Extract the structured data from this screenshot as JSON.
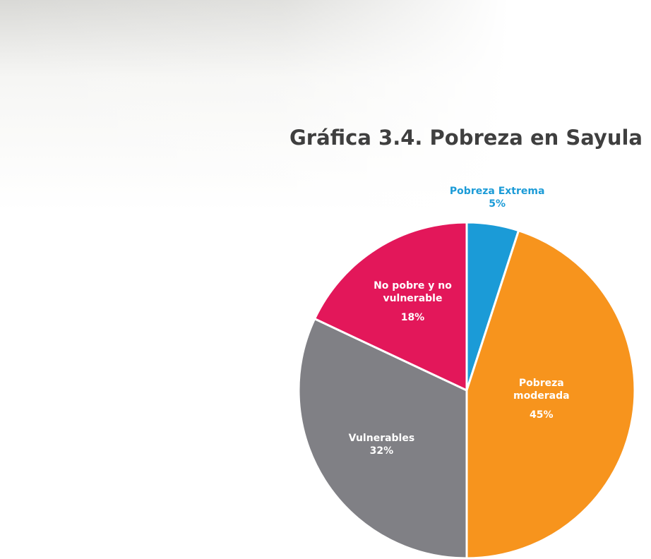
{
  "chart_data": {
    "type": "pie",
    "title": "Gráfica 3.4. Pobreza en Sayula",
    "categories": [
      "Pobreza Extrema",
      "Pobreza moderada",
      "Vulnerables",
      "No pobre y no vulnerable"
    ],
    "values": [
      5,
      45,
      32,
      18
    ],
    "value_labels": [
      "5%",
      "45%",
      "32%",
      "18%"
    ],
    "colors": [
      "#1b9bd7",
      "#f7941d",
      "#808085",
      "#e3175a"
    ]
  }
}
